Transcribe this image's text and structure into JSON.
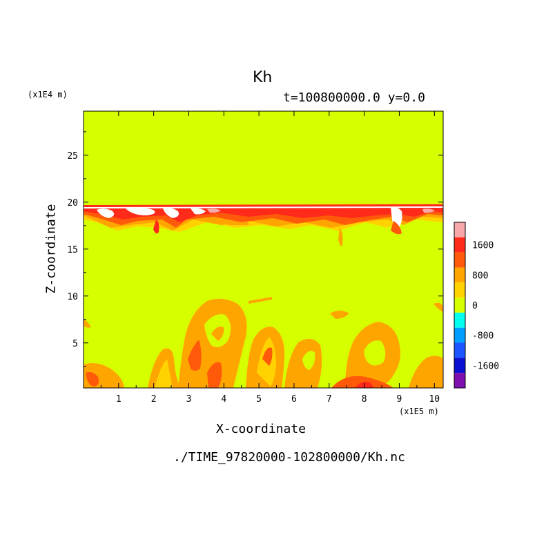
{
  "chart_data": {
    "type": "heatmap",
    "title": "Kh",
    "subtitle": "t=100800000.0 y=0.0",
    "xlabel": "X-coordinate",
    "ylabel": "Z-coordinate",
    "x_unit": "(x1E5 m)",
    "y_unit": "(x1E4 m)",
    "xlim": [
      0,
      10.25
    ],
    "ylim": [
      0.2,
      29.7
    ],
    "x_ticks": [
      1,
      2,
      3,
      4,
      5,
      6,
      7,
      8,
      9,
      10
    ],
    "y_ticks": [
      5,
      10,
      15,
      20,
      25
    ],
    "source_file": "./TIME_97820000-102800000/Kh.nc",
    "colorbar": {
      "levels": [
        {
          "min": 1800,
          "max": 2200,
          "color": "#f9a8aa"
        },
        {
          "min": 1400,
          "max": 1800,
          "color": "#ff2a1a"
        },
        {
          "min": 1000,
          "max": 1400,
          "color": "#ff5a0a"
        },
        {
          "min": 600,
          "max": 1000,
          "color": "#ffa500"
        },
        {
          "min": 200,
          "max": 600,
          "color": "#ffd200"
        },
        {
          "min": -200,
          "max": 200,
          "color": "#d6ff00"
        },
        {
          "min": -600,
          "max": -200,
          "color": "#00ffee"
        },
        {
          "min": -1000,
          "max": -600,
          "color": "#009eff"
        },
        {
          "min": -1400,
          "max": -1000,
          "color": "#1a55ff"
        },
        {
          "min": -1800,
          "max": -1400,
          "color": "#0a10d2"
        },
        {
          "min": -2200,
          "max": -1800,
          "color": "#7e10b0"
        }
      ],
      "tick_labels": [
        "1600",
        "800",
        "0",
        "-800",
        "-1600"
      ],
      "tick_values": [
        1600,
        800,
        0,
        -800,
        -1600
      ],
      "range": [
        -2200,
        2200
      ]
    },
    "background_value": 0,
    "features": [
      {
        "name": "upper-turbulent-layer",
        "x_range": [
          0,
          10.25
        ],
        "z_range": [
          16.5,
          19.8
        ],
        "peak_value": 2000
      },
      {
        "name": "lower-plumes",
        "x_range": [
          0,
          10.25
        ],
        "z_range": [
          0.2,
          9.8
        ],
        "typical_value": 800
      }
    ]
  }
}
